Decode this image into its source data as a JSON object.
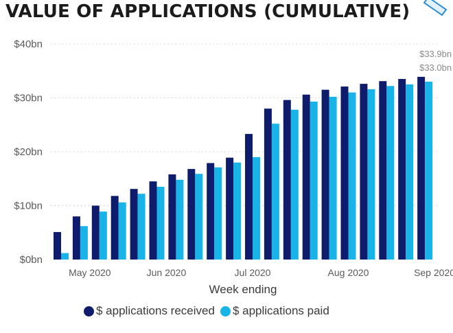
{
  "title": "VALUE OF APPLICATIONS (CUMULATIVE)",
  "icons": {
    "corner": "pin-icon"
  },
  "colors": {
    "received": "#0e1c6b",
    "paid": "#18b4e8",
    "grid": "#c8c8c8"
  },
  "chart_data": {
    "type": "bar",
    "xlabel": "Week ending",
    "ylabel": "",
    "ylim": [
      0,
      40
    ],
    "yticks": [
      "$0bn",
      "$10bn",
      "$20bn",
      "$30bn",
      "$40bn"
    ],
    "xticks": [
      "May 2020",
      "Jun 2020",
      "Jul 2020",
      "Aug 2020",
      "Sep 2020"
    ],
    "xtick_positions": [
      1.5,
      5.5,
      10,
      15,
      19.5
    ],
    "grid": "horizontal dotted",
    "legend": "bottom",
    "series": [
      {
        "name": "$ applications received",
        "values": [
          5.1,
          8.0,
          10.0,
          11.8,
          13.1,
          14.5,
          15.8,
          16.8,
          17.9,
          18.9,
          23.3,
          28.0,
          29.6,
          30.6,
          31.5,
          32.1,
          32.6,
          33.1,
          33.5,
          33.9
        ]
      },
      {
        "name": "$ applications paid",
        "values": [
          1.2,
          6.2,
          8.9,
          10.6,
          12.2,
          13.5,
          14.8,
          15.9,
          17.1,
          18.0,
          19.0,
          25.2,
          27.8,
          29.3,
          30.2,
          31.0,
          31.6,
          32.2,
          32.5,
          33.0
        ]
      }
    ],
    "data_labels": [
      "$33.9bn",
      "$33.0bn"
    ]
  }
}
